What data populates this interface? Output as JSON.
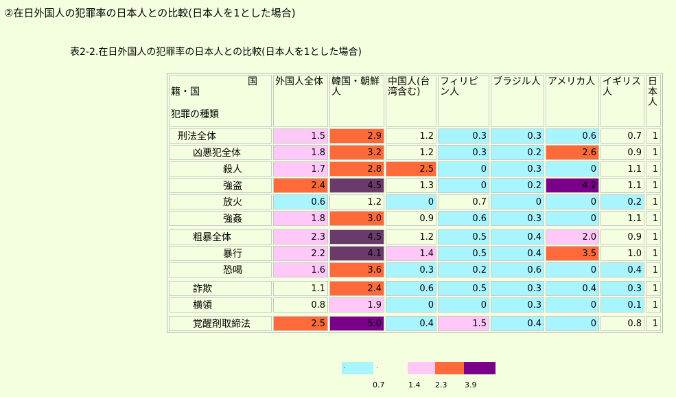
{
  "page_title": "②在日外国人の犯罪率の日本人との比較(日本人を1とした場合)",
  "table_caption": "表2-2.在日外国人の犯罪率の日本人との比較(日本人を1とした場合)",
  "header": {
    "corner_top": "国",
    "corner_mid": "籍・国",
    "corner_bot": "犯罪の種類",
    "cols": [
      "外国人全体",
      "韓国・朝鮮人",
      "中国人(台湾含む)",
      "フィリピン人",
      "ブラジル人",
      "アメリカ人",
      "イギリス人",
      "日本人"
    ]
  },
  "colors": {
    "cyan": "#a8f4ff",
    "pink": "#ffc8f8",
    "orange": "#ff6a3a",
    "plum": "#6a3a6a",
    "purple": "#7a008a",
    "background": "#f4ffe0"
  },
  "rows": [
    {
      "label": "刑法全体",
      "level": 0,
      "values": [
        "1.5",
        "2.9",
        "1.2",
        "0.3",
        "0.3",
        "0.6",
        "0.7",
        "1"
      ],
      "colors": [
        "pink",
        "orange",
        "none",
        "cyan",
        "cyan",
        "cyan",
        "none",
        "none"
      ]
    },
    {
      "label": "凶悪犯全体",
      "level": 1,
      "values": [
        "1.8",
        "3.2",
        "1.2",
        "0.3",
        "0.2",
        "2.6",
        "0.9",
        "1"
      ],
      "colors": [
        "pink",
        "orange",
        "none",
        "cyan",
        "cyan",
        "orange",
        "none",
        "none"
      ]
    },
    {
      "label": "殺人",
      "level": 2,
      "values": [
        "1.7",
        "2.8",
        "2.5",
        "0",
        "0.3",
        "0",
        "1.1",
        "1"
      ],
      "colors": [
        "pink",
        "orange",
        "orange",
        "cyan",
        "cyan",
        "cyan",
        "none",
        "none"
      ]
    },
    {
      "label": "強盗",
      "level": 2,
      "values": [
        "2.4",
        "4.5",
        "1.3",
        "0",
        "0.2",
        "4.2",
        "1.1",
        "1"
      ],
      "colors": [
        "orange",
        "plum",
        "none",
        "cyan",
        "cyan",
        "purple",
        "none",
        "none"
      ]
    },
    {
      "label": "放火",
      "level": 2,
      "values": [
        "0.6",
        "1.2",
        "0",
        "0.7",
        "0",
        "0",
        "0.2",
        "1"
      ],
      "colors": [
        "cyan",
        "none",
        "cyan",
        "none",
        "cyan",
        "cyan",
        "cyan",
        "none"
      ]
    },
    {
      "label": "強姦",
      "level": 2,
      "values": [
        "1.8",
        "3.0",
        "0.9",
        "0.6",
        "0.3",
        "0",
        "1.1",
        "1"
      ],
      "colors": [
        "pink",
        "orange",
        "none",
        "cyan",
        "cyan",
        "cyan",
        "none",
        "none"
      ]
    },
    {
      "sep": true
    },
    {
      "label": "粗暴全体",
      "level": 1,
      "values": [
        "2.3",
        "4.5",
        "1.2",
        "0.5",
        "0.4",
        "2.0",
        "0.9",
        "1"
      ],
      "colors": [
        "pink",
        "plum",
        "none",
        "cyan",
        "cyan",
        "pink",
        "none",
        "none"
      ]
    },
    {
      "label": "暴行",
      "level": 2,
      "values": [
        "2.2",
        "4.1",
        "1.4",
        "0.5",
        "0.4",
        "3.5",
        "1.0",
        "1"
      ],
      "colors": [
        "pink",
        "plum",
        "pink",
        "cyan",
        "cyan",
        "orange",
        "none",
        "none"
      ]
    },
    {
      "label": "恐喝",
      "level": 2,
      "values": [
        "1.6",
        "3.6",
        "0.3",
        "0.2",
        "0.6",
        "0",
        "0.4",
        "1"
      ],
      "colors": [
        "pink",
        "orange",
        "cyan",
        "cyan",
        "cyan",
        "cyan",
        "cyan",
        "none"
      ]
    },
    {
      "sep": true
    },
    {
      "label": "詐欺",
      "level": 1,
      "values": [
        "1.1",
        "2.4",
        "0.6",
        "0.5",
        "0.3",
        "0.4",
        "0.3",
        "1"
      ],
      "colors": [
        "none",
        "orange",
        "cyan",
        "cyan",
        "cyan",
        "cyan",
        "cyan",
        "none"
      ]
    },
    {
      "label": "横領",
      "level": 1,
      "values": [
        "0.8",
        "1.9",
        "0",
        "0",
        "0.3",
        "0",
        "0.1",
        "1"
      ],
      "colors": [
        "none",
        "pink",
        "cyan",
        "cyan",
        "cyan",
        "cyan",
        "cyan",
        "none"
      ]
    },
    {
      "sep": true
    },
    {
      "label": "覚醒剤取締法",
      "level": 1,
      "values": [
        "2.5",
        "5.0",
        "0.4",
        "1.5",
        "0.4",
        "0",
        "0.8",
        "1"
      ],
      "colors": [
        "orange",
        "purple",
        "cyan",
        "pink",
        "cyan",
        "cyan",
        "none",
        "none"
      ]
    }
  ],
  "legend": {
    "swatches": [
      "cyan",
      "none",
      "pink",
      "orange",
      "purple"
    ],
    "ticks": [
      "0.7",
      "1.4",
      "2.3",
      "3.9"
    ],
    "dots": [
      ".",
      "."
    ]
  }
}
